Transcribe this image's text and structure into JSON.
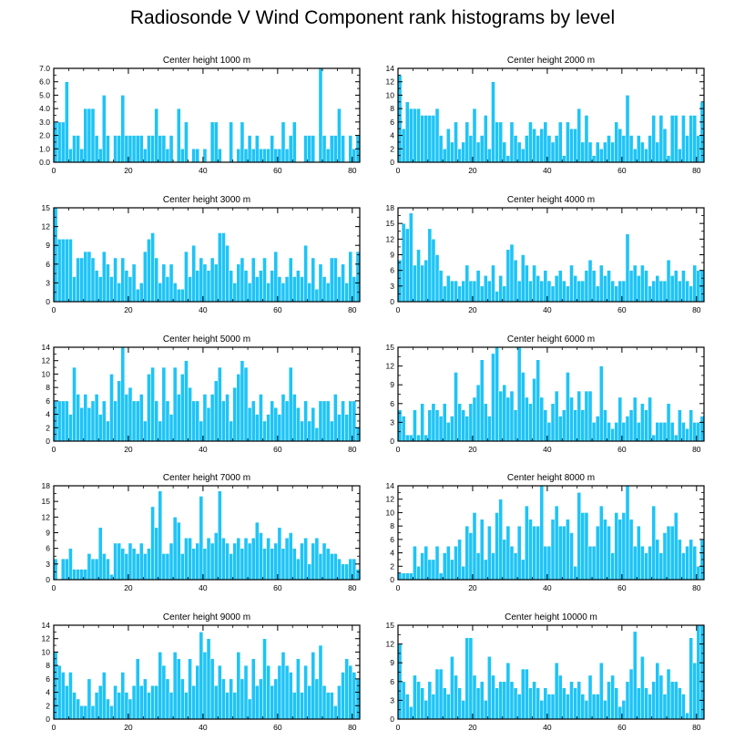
{
  "title": "Radiosonde V Wind Component rank histograms by level",
  "colors": {
    "bar": "#1ec4f6",
    "bar_edge": "#ffffff",
    "axis": "#000000"
  },
  "chart_data": [
    {
      "type": "bar",
      "title": "Center height 1000 m",
      "ylim": [
        0,
        7
      ],
      "yticks": [
        0,
        1,
        2,
        3,
        4,
        5,
        6,
        7
      ],
      "ytick_labels": [
        "0.0",
        "1.0",
        "2.0",
        "3.0",
        "4.0",
        "5.0",
        "6.0",
        "7.0"
      ],
      "xlim": [
        0,
        82
      ],
      "xticks": [
        0,
        20,
        40,
        60,
        80
      ],
      "values": [
        3,
        3,
        3,
        6,
        1,
        2,
        2,
        1,
        4,
        4,
        4,
        2,
        1,
        5,
        2,
        0,
        2,
        2,
        5,
        2,
        2,
        2,
        2,
        2,
        1,
        2,
        2,
        4,
        2,
        2,
        1,
        2,
        0,
        4,
        1,
        3,
        0,
        1,
        1,
        0,
        1,
        0,
        3,
        3,
        1,
        0,
        0,
        3,
        0,
        1,
        3,
        1,
        2,
        1,
        2,
        1,
        1,
        1,
        2,
        1,
        1,
        3,
        1,
        2,
        3,
        0,
        0,
        2,
        2,
        2,
        0,
        7,
        2,
        1,
        2,
        2,
        4,
        2,
        0,
        2,
        1,
        2
      ]
    },
    {
      "type": "bar",
      "title": "Center height 2000 m",
      "ylim": [
        0,
        14
      ],
      "yticks": [
        0,
        2,
        4,
        6,
        8,
        10,
        12,
        14
      ],
      "ytick_labels": [
        "0",
        "2",
        "4",
        "6",
        "8",
        "10",
        "12",
        "14"
      ],
      "xlim": [
        0,
        82
      ],
      "xticks": [
        0,
        20,
        40,
        60,
        80
      ],
      "values": [
        13,
        5,
        9,
        8,
        8,
        8,
        7,
        7,
        7,
        7,
        8,
        4,
        2,
        5,
        3,
        6,
        2,
        3,
        6,
        4,
        8,
        3,
        4,
        7,
        2,
        12,
        6,
        6,
        3,
        1,
        6,
        4,
        3,
        2,
        4,
        6,
        5,
        4,
        5,
        6,
        4,
        3,
        4,
        6,
        1,
        6,
        5,
        5,
        8,
        3,
        7,
        3,
        1,
        3,
        2,
        3,
        4,
        3,
        6,
        5,
        4,
        10,
        4,
        2,
        4,
        3,
        2,
        4,
        7,
        3,
        7,
        5,
        1,
        7,
        7,
        2,
        7,
        4,
        7,
        7,
        4,
        9
      ]
    },
    {
      "type": "bar",
      "title": "Center height 3000 m",
      "ylim": [
        0,
        15
      ],
      "yticks": [
        0,
        3,
        6,
        9,
        12,
        15
      ],
      "ytick_labels": [
        "0",
        "3",
        "6",
        "9",
        "12",
        "15"
      ],
      "xlim": [
        0,
        82
      ],
      "xticks": [
        0,
        20,
        40,
        60,
        80
      ],
      "values": [
        15,
        10,
        10,
        10,
        10,
        4,
        7,
        7,
        8,
        8,
        7,
        5,
        4,
        8,
        6,
        4,
        7,
        3,
        7,
        5,
        4,
        6,
        2,
        3,
        8,
        10,
        11,
        7,
        3,
        6,
        4,
        6,
        3,
        2,
        2,
        8,
        4,
        9,
        5,
        7,
        6,
        5,
        7,
        6,
        11,
        11,
        9,
        5,
        3,
        6,
        7,
        5,
        3,
        7,
        4,
        5,
        7,
        3,
        5,
        8,
        4,
        3,
        4,
        7,
        4,
        5,
        4,
        9,
        3,
        7,
        2,
        6,
        4,
        3,
        7,
        7,
        4,
        6,
        3,
        8,
        4,
        8
      ]
    },
    {
      "type": "bar",
      "title": "Center height 4000 m",
      "ylim": [
        0,
        18
      ],
      "yticks": [
        0,
        3,
        6,
        9,
        12,
        15,
        18
      ],
      "ytick_labels": [
        "0",
        "3",
        "6",
        "9",
        "12",
        "15",
        "18"
      ],
      "xlim": [
        0,
        82
      ],
      "xticks": [
        0,
        20,
        40,
        60,
        80
      ],
      "values": [
        8,
        15,
        14,
        17,
        7,
        10,
        7,
        8,
        14,
        12,
        9,
        6,
        3,
        5,
        4,
        4,
        3,
        4,
        7,
        4,
        4,
        6,
        3,
        5,
        4,
        7,
        2,
        5,
        3,
        10,
        11,
        8,
        4,
        9,
        7,
        4,
        7,
        5,
        4,
        6,
        4,
        3,
        5,
        6,
        4,
        3,
        7,
        5,
        4,
        4,
        6,
        8,
        6,
        3,
        7,
        5,
        6,
        4,
        3,
        4,
        4,
        13,
        6,
        7,
        5,
        7,
        6,
        3,
        4,
        5,
        4,
        4,
        8,
        5,
        6,
        4,
        6,
        4,
        3,
        7,
        6,
        6
      ]
    },
    {
      "type": "bar",
      "title": "Center height 5000 m",
      "ylim": [
        0,
        14
      ],
      "yticks": [
        0,
        2,
        4,
        6,
        8,
        10,
        12,
        14
      ],
      "ytick_labels": [
        "0",
        "2",
        "4",
        "6",
        "8",
        "10",
        "12",
        "14"
      ],
      "xlim": [
        0,
        82
      ],
      "xticks": [
        0,
        20,
        40,
        60,
        80
      ],
      "values": [
        6,
        6,
        6,
        6,
        4,
        11,
        7,
        5,
        7,
        5,
        6,
        7,
        4,
        6,
        3,
        10,
        6,
        9,
        14,
        7,
        8,
        6,
        6,
        7,
        3,
        10,
        11,
        6,
        3,
        11,
        6,
        4,
        11,
        7,
        10,
        12,
        8,
        6,
        6,
        3,
        7,
        5,
        7,
        9,
        11,
        6,
        7,
        3,
        8,
        10,
        12,
        11,
        5,
        6,
        4,
        7,
        3,
        4,
        6,
        5,
        4,
        7,
        6,
        11,
        7,
        5,
        3,
        6,
        3,
        5,
        2,
        6,
        6,
        6,
        3,
        7,
        4,
        6,
        4,
        6,
        6,
        2
      ]
    },
    {
      "type": "bar",
      "title": "Center height 6000 m",
      "ylim": [
        0,
        15
      ],
      "yticks": [
        0,
        3,
        6,
        9,
        12,
        15
      ],
      "ytick_labels": [
        "0",
        "3",
        "6",
        "9",
        "12",
        "15"
      ],
      "xlim": [
        0,
        82
      ],
      "xticks": [
        0,
        20,
        40,
        60,
        80
      ],
      "values": [
        5,
        4,
        1,
        1,
        5,
        1,
        6,
        1,
        5,
        6,
        5,
        4,
        6,
        3,
        4,
        11,
        6,
        5,
        4,
        6,
        7,
        9,
        13,
        6,
        4,
        14,
        15,
        8,
        9,
        7,
        8,
        5,
        15,
        11,
        7,
        6,
        10,
        13,
        7,
        5,
        3,
        6,
        8,
        4,
        5,
        11,
        7,
        5,
        8,
        5,
        8,
        8,
        3,
        4,
        12,
        5,
        3,
        2,
        3,
        7,
        3,
        4,
        5,
        7,
        3,
        6,
        5,
        7,
        1,
        3,
        3,
        3,
        6,
        3,
        1,
        5,
        3,
        2,
        5,
        3,
        3,
        4
      ]
    },
    {
      "type": "bar",
      "title": "Center height 7000 m",
      "ylim": [
        0,
        18
      ],
      "yticks": [
        0,
        3,
        6,
        9,
        12,
        15,
        18
      ],
      "ytick_labels": [
        "0",
        "3",
        "6",
        "9",
        "12",
        "15",
        "18"
      ],
      "xlim": [
        0,
        82
      ],
      "xticks": [
        0,
        20,
        40,
        60,
        80
      ],
      "values": [
        4,
        0,
        4,
        4,
        6,
        2,
        2,
        2,
        2,
        5,
        4,
        4,
        10,
        5,
        4,
        1,
        7,
        7,
        6,
        5,
        7,
        6,
        5,
        7,
        5,
        6,
        14,
        10,
        17,
        5,
        5,
        7,
        12,
        11,
        5,
        8,
        8,
        6,
        7,
        16,
        6,
        8,
        7,
        9,
        17,
        8,
        7,
        5,
        7,
        8,
        6,
        8,
        7,
        8,
        11,
        9,
        6,
        8,
        6,
        7,
        10,
        6,
        8,
        9,
        6,
        4,
        7,
        8,
        3,
        7,
        8,
        5,
        7,
        6,
        5,
        5,
        4,
        3,
        3,
        4,
        4,
        2
      ]
    },
    {
      "type": "bar",
      "title": "Center height 8000 m",
      "ylim": [
        0,
        14
      ],
      "yticks": [
        0,
        2,
        4,
        6,
        8,
        10,
        12,
        14
      ],
      "ytick_labels": [
        "0",
        "2",
        "4",
        "6",
        "8",
        "10",
        "12",
        "14"
      ],
      "xlim": [
        0,
        82
      ],
      "xticks": [
        0,
        20,
        40,
        60,
        80
      ],
      "values": [
        1,
        1,
        1,
        1,
        5,
        2,
        4,
        5,
        3,
        3,
        5,
        1,
        4,
        5,
        3,
        5,
        6,
        2,
        8,
        7,
        10,
        4,
        9,
        3,
        8,
        4,
        10,
        12,
        6,
        8,
        5,
        4,
        8,
        3,
        11,
        9,
        8,
        8,
        14,
        5,
        5,
        9,
        11,
        8,
        8,
        9,
        7,
        2,
        13,
        10,
        10,
        5,
        5,
        8,
        11,
        9,
        8,
        4,
        10,
        9,
        10,
        14,
        9,
        5,
        8,
        5,
        4,
        5,
        11,
        6,
        4,
        7,
        8,
        8,
        10,
        6,
        4,
        5,
        6,
        5,
        2,
        6
      ]
    },
    {
      "type": "bar",
      "title": "Center height 9000 m",
      "ylim": [
        0,
        14
      ],
      "yticks": [
        0,
        2,
        4,
        6,
        8,
        10,
        12,
        14
      ],
      "ytick_labels": [
        "0",
        "2",
        "4",
        "6",
        "8",
        "10",
        "12",
        "14"
      ],
      "xlim": [
        0,
        82
      ],
      "xticks": [
        0,
        20,
        40,
        60,
        80
      ],
      "values": [
        10,
        8,
        7,
        5,
        7,
        4,
        3,
        2,
        2,
        6,
        2,
        4,
        5,
        7,
        3,
        2,
        5,
        4,
        7,
        4,
        3,
        5,
        9,
        5,
        6,
        4,
        5,
        5,
        10,
        8,
        6,
        4,
        10,
        9,
        6,
        4,
        9,
        5,
        8,
        13,
        10,
        12,
        9,
        5,
        8,
        6,
        4,
        6,
        4,
        10,
        6,
        8,
        3,
        9,
        5,
        6,
        12,
        8,
        5,
        6,
        8,
        10,
        8,
        7,
        4,
        9,
        4,
        8,
        5,
        10,
        6,
        11,
        5,
        4,
        4,
        2,
        5,
        7,
        9,
        8,
        7,
        6
      ]
    },
    {
      "type": "bar",
      "title": "Center height 10000 m",
      "ylim": [
        0,
        15
      ],
      "yticks": [
        0,
        3,
        6,
        9,
        12,
        15
      ],
      "ytick_labels": [
        "0",
        "3",
        "6",
        "9",
        "12",
        "15"
      ],
      "xlim": [
        0,
        82
      ],
      "xticks": [
        0,
        20,
        40,
        60,
        80
      ],
      "values": [
        12,
        6,
        4,
        2,
        7,
        6,
        5,
        3,
        6,
        4,
        8,
        8,
        5,
        4,
        10,
        7,
        5,
        3,
        13,
        13,
        7,
        5,
        6,
        3,
        10,
        7,
        5,
        6,
        6,
        9,
        6,
        5,
        4,
        8,
        8,
        5,
        6,
        5,
        3,
        5,
        4,
        4,
        9,
        7,
        5,
        4,
        6,
        5,
        6,
        4,
        3,
        7,
        4,
        4,
        9,
        3,
        6,
        7,
        5,
        2,
        3,
        6,
        8,
        14,
        5,
        10,
        5,
        4,
        6,
        9,
        7,
        4,
        8,
        6,
        6,
        5,
        4,
        1,
        13,
        9,
        15,
        15
      ]
    }
  ]
}
